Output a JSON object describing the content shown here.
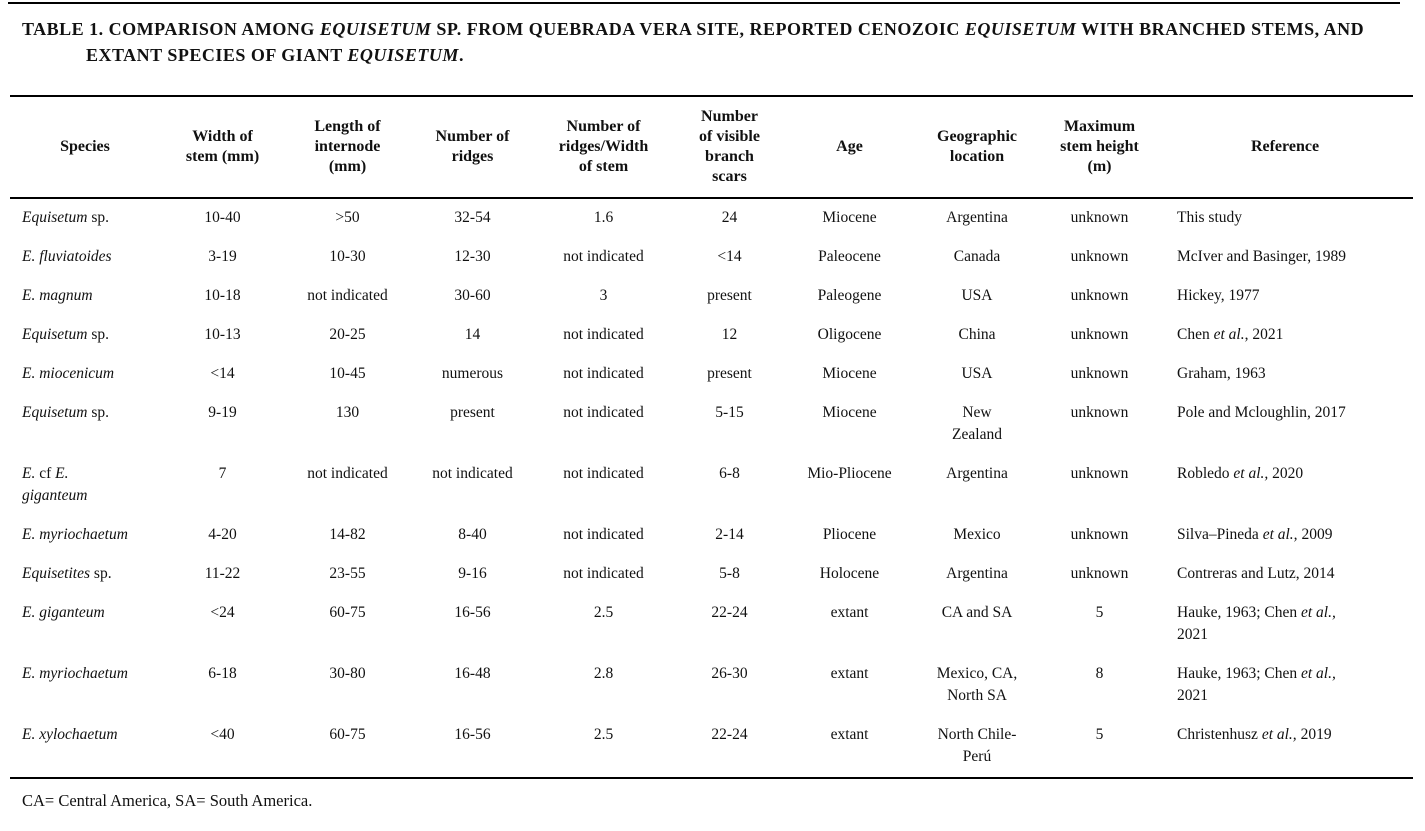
{
  "caption": "TABLE 1. COMPARISON AMONG *EQUISETUM* SP. FROM QUEBRADA VERA SITE, REPORTED CENOZOIC *EQUISETUM* WITH BRANCHED STEMS, AND\nEXTANT SPECIES OF GIANT *EQUISETUM*.",
  "footnote": "CA= Central America, SA= South America.",
  "colors": {
    "text": "#111111",
    "rule": "#000000",
    "background": "#ffffff"
  },
  "table": {
    "columns": [
      "Species",
      "Width of\nstem (mm)",
      "Length of\ninternode\n(mm)",
      "Number of\nridges",
      "Number of\nridges/Width\nof stem",
      "Number\nof visible\nbranch\nscars",
      "Age",
      "Geographic\nlocation",
      "Maximum\nstem height\n(m)",
      "Reference"
    ],
    "rows": [
      [
        "*Equisetum* sp.",
        "10-40",
        ">50",
        "32-54",
        "1.6",
        "24",
        "Miocene",
        "Argentina",
        "unknown",
        "This study"
      ],
      [
        "*E. fluviatoides*",
        "3-19",
        "10-30",
        "12-30",
        "not indicated",
        "<14",
        "Paleocene",
        "Canada",
        "unknown",
        "McIver and Basinger, 1989"
      ],
      [
        "*E. magnum*",
        "10-18",
        "not indicated",
        "30-60",
        "3",
        "present",
        "Paleogene",
        "USA",
        "unknown",
        "Hickey, 1977"
      ],
      [
        "*Equisetum* sp.",
        "10-13",
        "20-25",
        "14",
        "not indicated",
        "12",
        "Oligocene",
        "China",
        "unknown",
        "Chen *et al.*, 2021"
      ],
      [
        "*E. miocenicum*",
        "<14",
        "10-45",
        "numerous",
        "not indicated",
        "present",
        "Miocene",
        "USA",
        "unknown",
        "Graham, 1963"
      ],
      [
        "*Equisetum* sp.",
        "9-19",
        "130",
        "present",
        "not indicated",
        "5-15",
        "Miocene",
        "New\nZealand",
        "unknown",
        "Pole and Mcloughlin, 2017"
      ],
      [
        "*E.* cf *E.*\n*giganteum*",
        "7",
        "not indicated",
        "not indicated",
        "not indicated",
        "6-8",
        "Mio-Pliocene",
        "Argentina",
        "unknown",
        "Robledo *et al.,* 2020"
      ],
      [
        "*E. myriochaetum*",
        "4-20",
        "14-82",
        "8-40",
        "not indicated",
        "2-14",
        "Pliocene",
        "Mexico",
        "unknown",
        "Silva–Pineda *et al.,* 2009"
      ],
      [
        "*Equisetites* sp.",
        "11-22",
        "23-55",
        "9-16",
        "not indicated",
        "5-8",
        "Holocene",
        "Argentina",
        "unknown",
        "Contreras and Lutz, 2014"
      ],
      [
        "*E. giganteum*",
        "<24",
        "60-75",
        "16-56",
        "2.5",
        "22-24",
        "extant",
        "CA and SA",
        "5",
        "Hauke, 1963; Chen *et al.,*\n2021"
      ],
      [
        "*E. myriochaetum*",
        "6-18",
        "30-80",
        "16-48",
        "2.8",
        "26-30",
        "extant",
        "Mexico, CA,\nNorth SA",
        "8",
        "Hauke, 1963; Chen *et al.,*\n2021"
      ],
      [
        "*E. xylochaetum*",
        "<40",
        "60-75",
        "16-56",
        "2.5",
        "22-24",
        "extant",
        "North Chile-\nPerú",
        "5",
        "Christenhusz *et al.,* 2019"
      ]
    ]
  }
}
